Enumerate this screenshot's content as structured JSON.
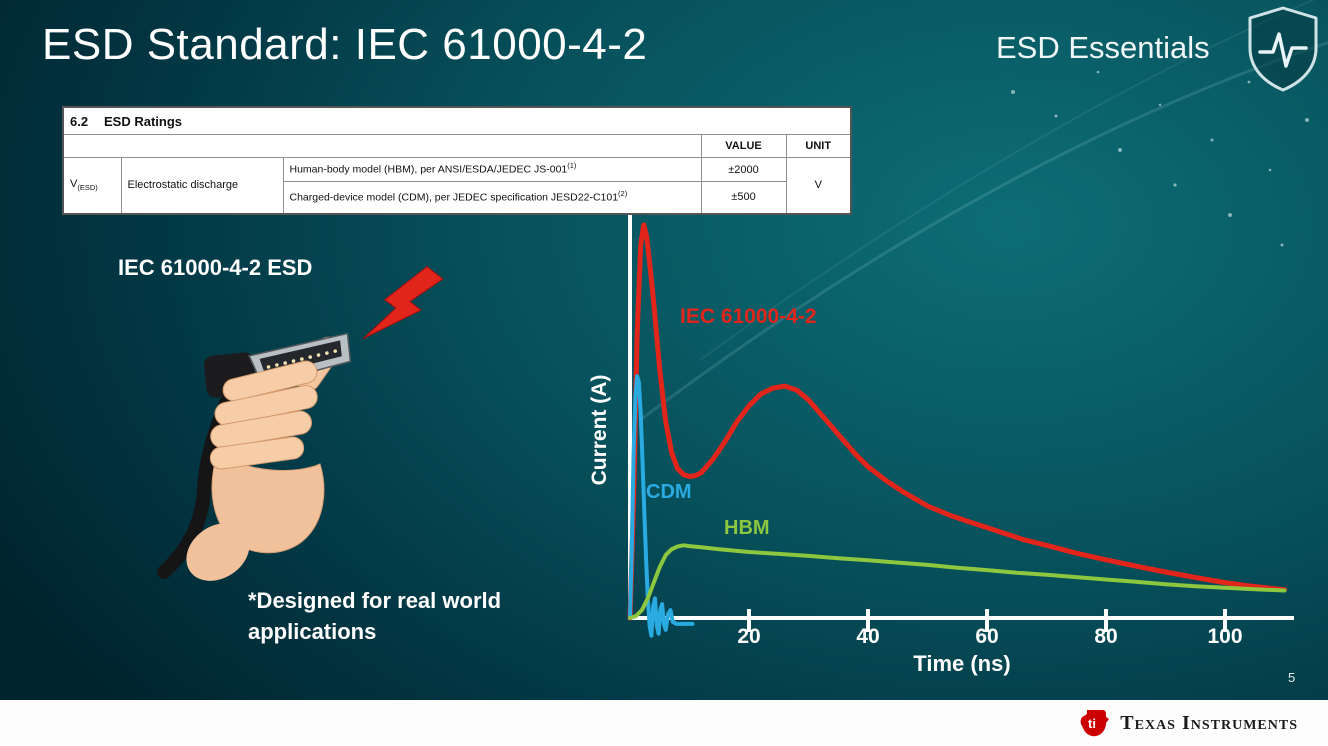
{
  "slide": {
    "title": "ESD Standard: IEC 61000-4-2",
    "series_label": "ESD Essentials",
    "page_number": "5",
    "footer_brand": "Texas Instruments"
  },
  "ratings_table": {
    "section_number": "6.2",
    "section_title": "ESD Ratings",
    "col_value": "VALUE",
    "col_unit": "UNIT",
    "param_symbol": "V",
    "param_symbol_sub": "(ESD)",
    "param_name": "Electrostatic discharge",
    "rows": [
      {
        "desc": "Human-body model (HBM), per ANSI/ESDA/JEDEC JS-001",
        "sup": "(1)",
        "value": "±2000"
      },
      {
        "desc": "Charged-device model (CDM), per JEDEC specification JESD22-C101",
        "sup": "(2)",
        "value": "±500"
      }
    ],
    "unit": "V"
  },
  "left": {
    "illustration_label": "IEC 61000-4-2 ESD",
    "note_line1": "*Designed for real world",
    "note_line2": "applications"
  },
  "chart_data": {
    "type": "line",
    "title": "",
    "xlabel": "Time (ns)",
    "ylabel": "Current (A)",
    "xlim": [
      0,
      111
    ],
    "ylim": [
      -0.05,
      1.02
    ],
    "xticks": [
      20,
      40,
      60,
      80,
      100
    ],
    "grid": false,
    "legend_position": "on-curve",
    "series": [
      {
        "name": "IEC 61000-4-2",
        "color": "#e1251b",
        "width": 5,
        "points": [
          [
            0,
            0
          ],
          [
            0.6,
            0.3
          ],
          [
            1.2,
            0.72
          ],
          [
            1.8,
            0.95
          ],
          [
            2.3,
            1.0
          ],
          [
            2.8,
            0.97
          ],
          [
            3.4,
            0.89
          ],
          [
            4,
            0.8
          ],
          [
            5,
            0.63
          ],
          [
            6,
            0.5
          ],
          [
            7,
            0.42
          ],
          [
            8,
            0.38
          ],
          [
            9,
            0.365
          ],
          [
            10,
            0.36
          ],
          [
            11,
            0.362
          ],
          [
            12,
            0.37
          ],
          [
            14,
            0.405
          ],
          [
            16,
            0.45
          ],
          [
            18,
            0.5
          ],
          [
            20,
            0.54
          ],
          [
            22,
            0.57
          ],
          [
            24,
            0.585
          ],
          [
            26,
            0.59
          ],
          [
            28,
            0.58
          ],
          [
            30,
            0.555
          ],
          [
            32,
            0.52
          ],
          [
            34,
            0.485
          ],
          [
            36,
            0.45
          ],
          [
            38,
            0.415
          ],
          [
            40,
            0.385
          ],
          [
            43,
            0.35
          ],
          [
            46,
            0.32
          ],
          [
            50,
            0.285
          ],
          [
            54,
            0.26
          ],
          [
            58,
            0.24
          ],
          [
            62,
            0.22
          ],
          [
            66,
            0.2
          ],
          [
            70,
            0.185
          ],
          [
            75,
            0.165
          ],
          [
            80,
            0.148
          ],
          [
            85,
            0.132
          ],
          [
            90,
            0.117
          ],
          [
            95,
            0.103
          ],
          [
            100,
            0.09
          ],
          [
            104,
            0.082
          ],
          [
            108,
            0.075
          ],
          [
            110,
            0.072
          ]
        ]
      },
      {
        "name": "CDM",
        "color": "#29abe2",
        "width": 4,
        "points": [
          [
            0,
            0
          ],
          [
            0.3,
            0.18
          ],
          [
            0.6,
            0.42
          ],
          [
            0.9,
            0.56
          ],
          [
            1.2,
            0.615
          ],
          [
            1.5,
            0.6
          ],
          [
            1.8,
            0.52
          ],
          [
            2.1,
            0.4
          ],
          [
            2.4,
            0.27
          ],
          [
            2.7,
            0.15
          ],
          [
            3,
            0.05
          ],
          [
            3.3,
            -0.02
          ],
          [
            3.6,
            -0.045
          ],
          [
            3.9,
            0.03
          ],
          [
            4.2,
            0.05
          ],
          [
            4.5,
            -0.02
          ],
          [
            4.8,
            -0.04
          ],
          [
            5.1,
            0.02
          ],
          [
            5.4,
            0.035
          ],
          [
            5.7,
            -0.015
          ],
          [
            6,
            -0.03
          ],
          [
            6.4,
            0.01
          ],
          [
            6.8,
            0.02
          ],
          [
            7.2,
            -0.01
          ],
          [
            7.8,
            -0.015
          ],
          [
            8.5,
            -0.015
          ],
          [
            9.5,
            -0.015
          ],
          [
            10.5,
            -0.015
          ]
        ]
      },
      {
        "name": "HBM",
        "color": "#8dc63f",
        "width": 4,
        "points": [
          [
            0,
            0
          ],
          [
            1,
            0.005
          ],
          [
            2,
            0.02
          ],
          [
            3,
            0.05
          ],
          [
            4,
            0.09
          ],
          [
            5,
            0.13
          ],
          [
            6,
            0.16
          ],
          [
            7,
            0.175
          ],
          [
            8,
            0.182
          ],
          [
            9,
            0.185
          ],
          [
            10,
            0.183
          ],
          [
            12,
            0.18
          ],
          [
            15,
            0.175
          ],
          [
            20,
            0.168
          ],
          [
            25,
            0.163
          ],
          [
            30,
            0.158
          ],
          [
            35,
            0.152
          ],
          [
            40,
            0.147
          ],
          [
            45,
            0.141
          ],
          [
            50,
            0.135
          ],
          [
            55,
            0.128
          ],
          [
            60,
            0.122
          ],
          [
            65,
            0.115
          ],
          [
            70,
            0.11
          ],
          [
            75,
            0.104
          ],
          [
            80,
            0.098
          ],
          [
            85,
            0.092
          ],
          [
            90,
            0.086
          ],
          [
            95,
            0.081
          ],
          [
            100,
            0.077
          ],
          [
            105,
            0.073
          ],
          [
            110,
            0.07
          ]
        ]
      }
    ]
  }
}
